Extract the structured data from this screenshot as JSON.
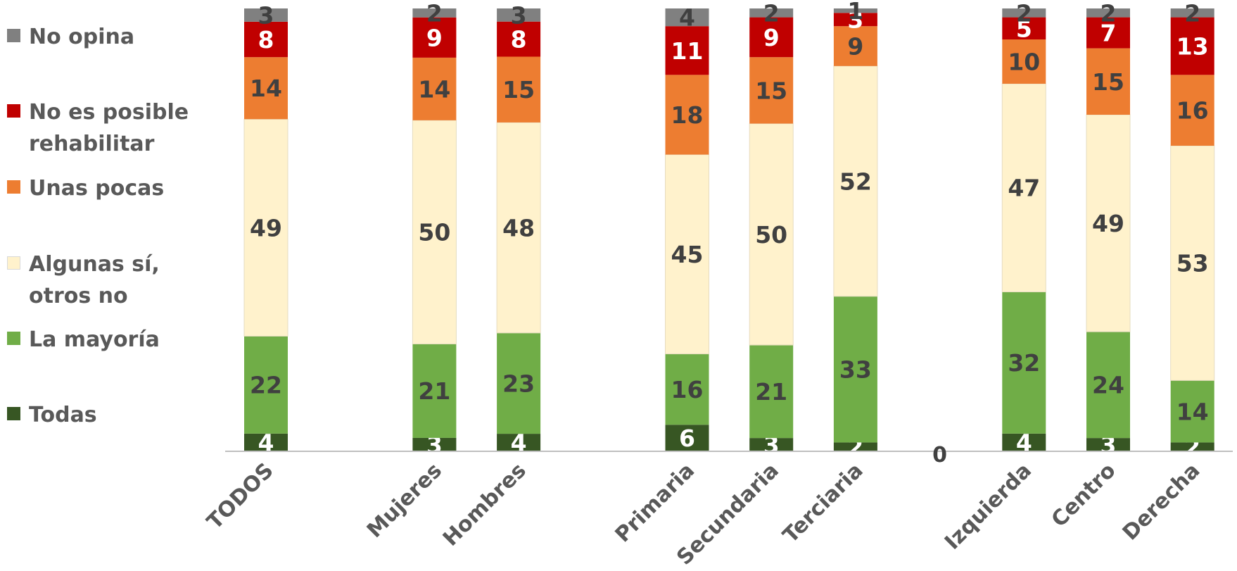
{
  "chart_data": {
    "type": "bar",
    "stacked": true,
    "title": "",
    "xlabel": "",
    "ylabel": "",
    "ylim": [
      0,
      100
    ],
    "grid": false,
    "legend_position": "left",
    "categories": [
      "TODOS",
      "",
      "Mujeres",
      "Hombres",
      "",
      "Primaria",
      "Secundaria",
      "Terciaria",
      "0",
      "Izquierda",
      "Centro",
      "Derecha"
    ],
    "series": [
      {
        "name": "Todas",
        "color": "#375623",
        "label_color": "#ffffff",
        "values": [
          4,
          null,
          3,
          4,
          null,
          6,
          3,
          2,
          null,
          4,
          3,
          2
        ]
      },
      {
        "name": "La mayoría",
        "color": "#70ad47",
        "label_color": "#404040",
        "values": [
          22,
          null,
          21,
          23,
          null,
          16,
          21,
          33,
          null,
          32,
          24,
          14
        ]
      },
      {
        "name": "Algunas sí, otros no",
        "color": "#fff2cc",
        "label_color": "#404040",
        "values": [
          49,
          null,
          50,
          48,
          null,
          45,
          50,
          52,
          null,
          47,
          49,
          53
        ]
      },
      {
        "name": "Unas pocas",
        "color": "#ed7d31",
        "label_color": "#404040",
        "values": [
          14,
          null,
          14,
          15,
          null,
          18,
          15,
          9,
          null,
          10,
          15,
          16
        ]
      },
      {
        "name": "No es posible rehabilitar",
        "color": "#c00000",
        "label_color": "#ffffff",
        "values": [
          8,
          null,
          9,
          8,
          null,
          11,
          9,
          3,
          null,
          5,
          7,
          13
        ]
      },
      {
        "name": "No opina",
        "color": "#808080",
        "label_color": "#404040",
        "values": [
          3,
          null,
          2,
          3,
          null,
          4,
          2,
          1,
          null,
          2,
          2,
          2
        ]
      }
    ]
  },
  "legend": {
    "items": [
      {
        "label": "No opina",
        "color": "#808080"
      },
      {
        "label": "No es posible rehabilitar",
        "color": "#c00000"
      },
      {
        "label": "Unas pocas",
        "color": "#ed7d31"
      },
      {
        "label": "Algunas sí, otros no",
        "color": "#fff2cc"
      },
      {
        "label": "La mayoría",
        "color": "#70ad47"
      },
      {
        "label": "Todas",
        "color": "#375623"
      }
    ]
  }
}
